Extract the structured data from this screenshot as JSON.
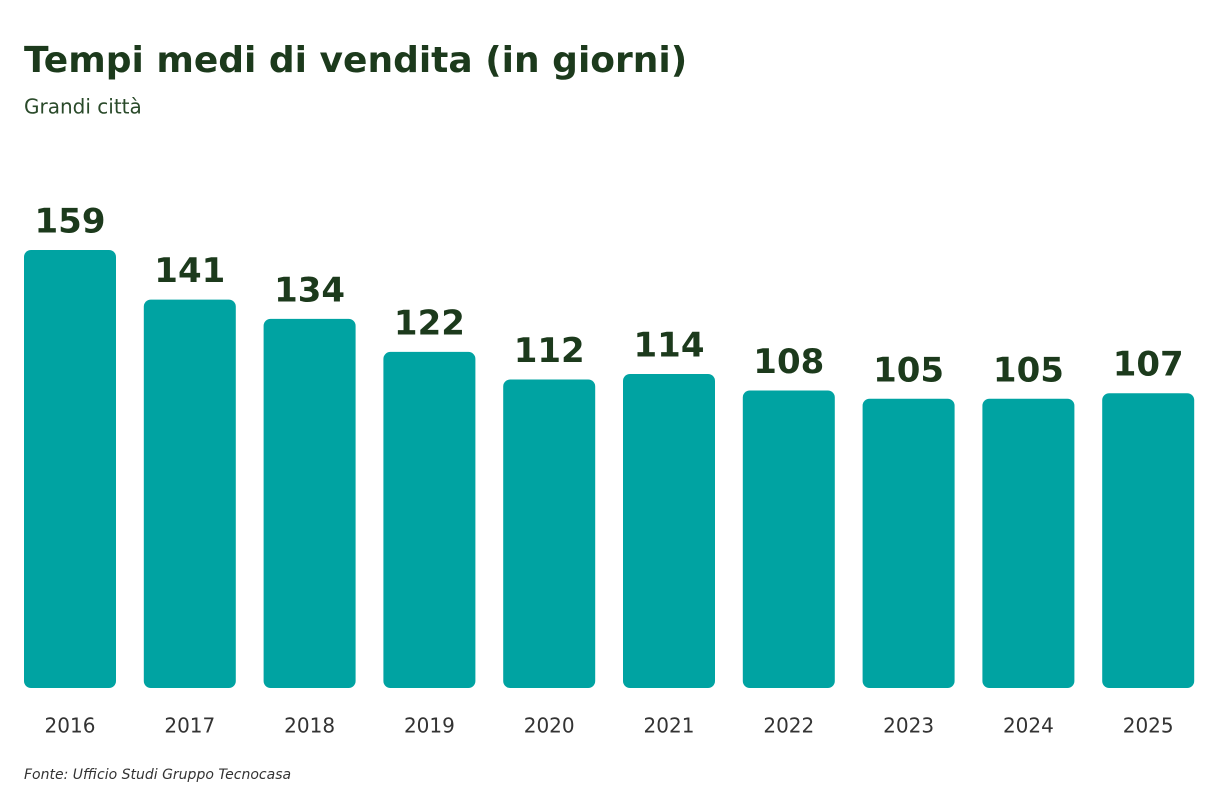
{
  "chart_data": {
    "type": "bar",
    "title": "Tempi medi di vendita (in giorni)",
    "subtitle": "Grandi città",
    "categories": [
      "2016",
      "2017",
      "2018",
      "2019",
      "2020",
      "2021",
      "2022",
      "2023",
      "2024",
      "2025"
    ],
    "values": [
      159,
      141,
      134,
      122,
      112,
      114,
      108,
      105,
      105,
      107
    ],
    "color": "#00a3a2",
    "source": "Fonte: Ufficio Studi Gruppo Tecnocasa"
  }
}
